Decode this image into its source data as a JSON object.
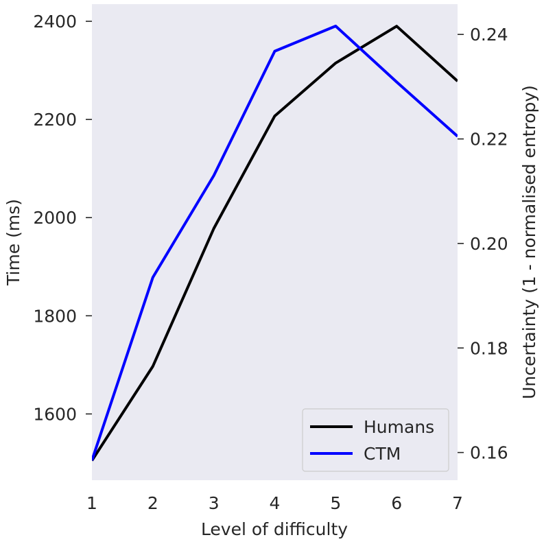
{
  "chart_data": {
    "type": "line",
    "xlabel": "Level of difficulty",
    "x": [
      1,
      2,
      3,
      4,
      5,
      6,
      7
    ],
    "xlim": [
      1,
      7
    ],
    "xticks": [
      "1",
      "2",
      "3",
      "4",
      "5",
      "6",
      "7"
    ],
    "left_axis": {
      "label": "Time (ms)",
      "lim": [
        1465,
        2435
      ],
      "ticks": [
        1600,
        1800,
        2000,
        2200,
        2400
      ],
      "tick_labels": [
        "1600",
        "1800",
        "2000",
        "2200",
        "2400"
      ]
    },
    "right_axis": {
      "label": "Uncertainty (1 - normalised entropy)",
      "lim": [
        0.1547,
        0.2458
      ],
      "ticks": [
        0.16,
        0.18,
        0.2,
        0.22,
        0.24
      ],
      "tick_labels": [
        "0.16",
        "0.18",
        "0.20",
        "0.22",
        "0.24"
      ]
    },
    "series": [
      {
        "name": "Humans",
        "axis": "left",
        "color": "#000000",
        "values": [
          1505,
          1697,
          1978,
          2207,
          2315,
          2390,
          2278
        ]
      },
      {
        "name": "CTM",
        "axis": "right",
        "color": "#0000ff",
        "values": [
          0.1585,
          0.1935,
          0.213,
          0.2368,
          0.2416,
          0.2309,
          0.2205
        ]
      }
    ],
    "legend": {
      "position": "bottom-right",
      "entries": [
        "Humans",
        "CTM"
      ]
    },
    "background_color": "#eaeaf2",
    "grid": false
  }
}
